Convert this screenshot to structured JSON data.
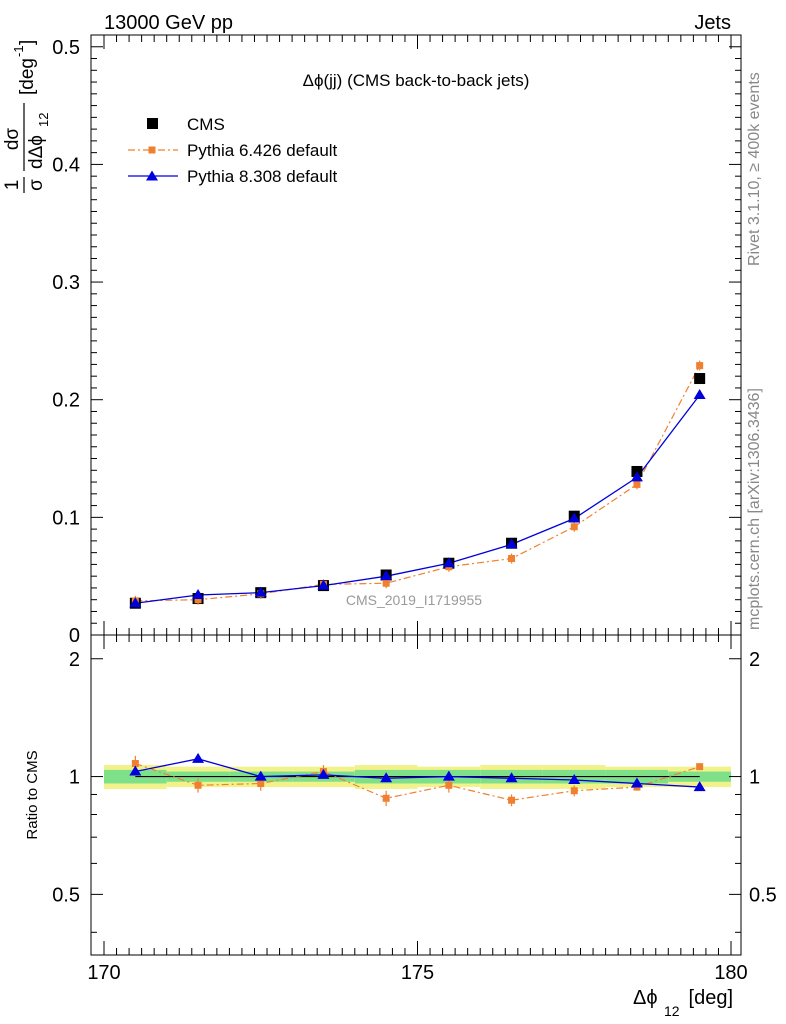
{
  "header": {
    "left": "13000 GeV pp",
    "right": "Jets"
  },
  "side_labels": {
    "rivet": "Rivet 3.1.10, ≥ 400k events",
    "mcplots": "mcplots.cern.ch [arXiv:1306.3436]"
  },
  "chart_data": {
    "type": "scatter",
    "title": "Δϕ(jj) (CMS back-to-back jets)",
    "watermark": "CMS_2019_I1719955",
    "xlabel": {
      "main": "Δϕ",
      "sub": "12",
      "unit": " [deg]"
    },
    "ylabel": {
      "frac1_num": "1",
      "frac1_den": "σ",
      "frac2_num": "dσ",
      "frac2_den": "dΔϕ",
      "frac2_den_sub": "12",
      "unit": "[deg",
      "unit_sup": "-1",
      "unit_close": "]"
    },
    "ratio_ylabel": "Ratio to CMS",
    "xlim": [
      170,
      180
    ],
    "ylim": [
      0,
      0.51
    ],
    "ratio_ylim": [
      0.35,
      2.3
    ],
    "x_ticks": [
      "170",
      "175",
      "180"
    ],
    "y_ticks": [
      "0",
      "0.1",
      "0.2",
      "0.3",
      "0.4",
      "0.5"
    ],
    "ratio_ticks": [
      "0.5",
      "1",
      "2"
    ],
    "x": [
      170.5,
      171.5,
      172.5,
      173.5,
      174.5,
      175.5,
      176.5,
      177.5,
      178.5,
      179.5
    ],
    "series": [
      {
        "name": "CMS",
        "style": "data",
        "color": "#000000",
        "values": [
          0.027,
          0.031,
          0.036,
          0.042,
          0.051,
          0.061,
          0.078,
          0.101,
          0.139,
          0.218
        ]
      },
      {
        "name": "Pythia 6.426 default",
        "style": "dashdot",
        "color": "#f08030",
        "values": [
          0.029,
          0.03,
          0.035,
          0.043,
          0.044,
          0.058,
          0.065,
          0.092,
          0.128,
          0.229
        ]
      },
      {
        "name": "Pythia 8.308 default",
        "style": "solid",
        "color": "#0000dd",
        "values": [
          0.027,
          0.034,
          0.036,
          0.042,
          0.05,
          0.061,
          0.077,
          0.099,
          0.134,
          0.204
        ]
      }
    ],
    "ratio_series": [
      {
        "name": "Pythia 6.426 default",
        "values": [
          1.08,
          0.95,
          0.96,
          1.03,
          0.88,
          0.95,
          0.87,
          0.92,
          0.94,
          1.06
        ]
      },
      {
        "name": "Pythia 8.308 default",
        "values": [
          1.03,
          1.11,
          1.0,
          1.01,
          0.99,
          1.0,
          0.99,
          0.98,
          0.96,
          0.94
        ]
      }
    ],
    "legend_position": "top-left"
  }
}
